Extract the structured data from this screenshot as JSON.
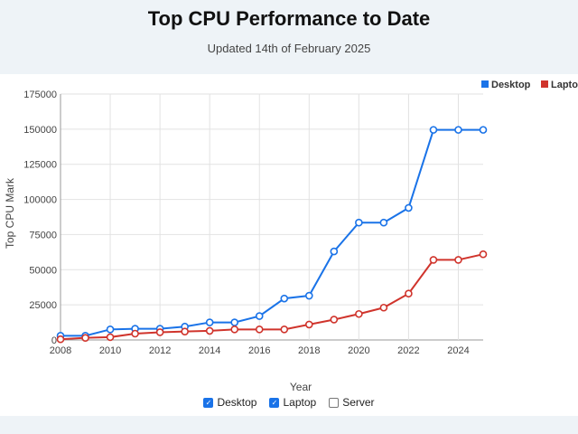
{
  "page": {
    "title": "Top CPU Performance to Date",
    "subtitle": "Updated 14th of February 2025"
  },
  "filters": [
    {
      "label": "Desktop",
      "checked": true
    },
    {
      "label": "Laptop",
      "checked": true
    },
    {
      "label": "Server",
      "checked": false
    }
  ],
  "chart_data": {
    "type": "line",
    "title": "Top CPU Performance to Date",
    "subtitle": "Updated 14th of February 2025",
    "xlabel": "Year",
    "ylabel": "Top CPU Mark",
    "x": [
      2008,
      2009,
      2010,
      2011,
      2012,
      2013,
      2014,
      2015,
      2016,
      2017,
      2018,
      2019,
      2020,
      2021,
      2022,
      2023,
      2024,
      2025
    ],
    "xlim": [
      2008,
      2025
    ],
    "ylim": [
      0,
      175000
    ],
    "xticks": [
      "2008",
      "2010",
      "2012",
      "2014",
      "2016",
      "2018",
      "2020",
      "2022",
      "2024"
    ],
    "yticks": [
      "0",
      "25000",
      "50000",
      "75000",
      "100000",
      "125000",
      "150000",
      "175000"
    ],
    "grid": true,
    "legend_position": "top-right",
    "series": [
      {
        "name": "Desktop",
        "color": "#1a73e8",
        "values": [
          3000,
          3000,
          7500,
          8000,
          8000,
          9500,
          12500,
          12500,
          17000,
          29500,
          31500,
          63000,
          83500,
          83500,
          94000,
          149500,
          149500,
          149500
        ]
      },
      {
        "name": "Laptop",
        "color": "#d0342c",
        "values": [
          500,
          1500,
          2000,
          4500,
          5500,
          6000,
          6500,
          7500,
          7500,
          7500,
          11000,
          14500,
          18500,
          23000,
          33000,
          57000,
          57000,
          61000
        ]
      }
    ]
  }
}
